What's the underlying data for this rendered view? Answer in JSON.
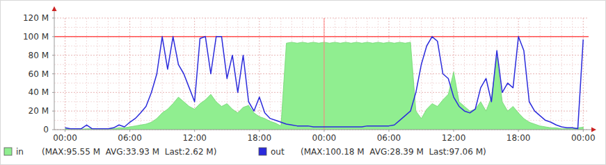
{
  "chart_data": {
    "type": "line",
    "x": [
      0,
      0.5,
      1,
      1.5,
      2,
      2.5,
      3,
      3.5,
      4,
      4.5,
      5,
      5.5,
      6,
      6.5,
      7,
      7.5,
      8,
      8.5,
      9,
      9.5,
      10,
      10.5,
      11,
      11.5,
      12,
      12.5,
      13,
      13.5,
      14,
      14.5,
      15,
      15.5,
      16,
      16.5,
      17,
      17.5,
      18,
      18.5,
      19,
      19.5,
      20,
      20.5,
      21,
      21.5,
      22,
      22.5,
      23,
      23.5,
      24,
      24.5,
      25,
      25.5,
      26,
      26.5,
      27,
      27.5,
      28,
      28.5,
      29,
      29.5,
      30,
      30.5,
      31,
      31.5,
      32,
      32.5,
      33,
      33.5,
      34,
      34.5,
      35,
      35.5,
      36,
      36.5,
      37,
      37.5,
      38,
      38.5,
      39,
      39.5,
      40,
      40.5,
      41,
      41.5,
      42,
      42.5,
      43,
      43.5,
      44,
      44.5,
      45,
      45.5,
      46,
      46.5,
      47,
      47.5,
      48
    ],
    "series": [
      {
        "name": "in",
        "type": "area",
        "color": "#90ee90",
        "stats": "(MAX:95.55 M  AVG:33.93 M  Last:2.62 M)",
        "values": [
          1,
          1,
          0.5,
          0.5,
          1,
          1,
          0.5,
          1,
          1,
          1,
          2,
          2,
          3,
          4,
          5,
          6,
          8,
          12,
          18,
          22,
          28,
          35,
          30,
          25,
          22,
          28,
          32,
          38,
          30,
          25,
          28,
          22,
          18,
          24,
          26,
          18,
          14,
          12,
          9,
          7,
          4,
          93,
          94,
          93,
          94,
          93,
          94,
          93,
          94,
          93,
          94,
          93,
          94,
          93,
          94,
          93,
          94,
          93,
          94,
          93,
          94,
          93,
          94,
          93,
          94,
          20,
          12,
          22,
          28,
          25,
          32,
          38,
          62,
          30,
          25,
          20,
          22,
          30,
          20,
          35,
          78,
          30,
          20,
          25,
          18,
          12,
          8,
          6,
          4,
          3,
          2,
          2,
          1,
          1,
          1,
          2,
          2.6
        ]
      },
      {
        "name": "out",
        "type": "line",
        "color": "#2b2bdc",
        "stats": "(MAX:100.18 M  AVG:28.39 M  Last:97.06 M)",
        "values": [
          2,
          1,
          1,
          1,
          5,
          1,
          1,
          1,
          1,
          2,
          5,
          3,
          8,
          12,
          18,
          25,
          40,
          60,
          100,
          65,
          100,
          70,
          60,
          45,
          30,
          98,
          100,
          60,
          100,
          100,
          55,
          80,
          40,
          80,
          30,
          20,
          35,
          18,
          12,
          10,
          8,
          6,
          5,
          4,
          4,
          4,
          3,
          3,
          3,
          3,
          3,
          3,
          3,
          3,
          3,
          3,
          4,
          4,
          4,
          4,
          4,
          5,
          10,
          15,
          20,
          40,
          70,
          90,
          100,
          95,
          60,
          55,
          35,
          25,
          20,
          18,
          22,
          45,
          55,
          30,
          85,
          40,
          50,
          45,
          100,
          85,
          30,
          20,
          15,
          10,
          8,
          5,
          3,
          2,
          2,
          1,
          97
        ]
      }
    ],
    "xlim": [
      -1,
      48.5
    ],
    "xticks": [
      {
        "value": 0,
        "label": "00:00"
      },
      {
        "value": 6,
        "label": "06:00"
      },
      {
        "value": 12,
        "label": "12:00"
      },
      {
        "value": 18,
        "label": "18:00"
      },
      {
        "value": 24,
        "label": "00:00"
      },
      {
        "value": 30,
        "label": "06:00"
      },
      {
        "value": 36,
        "label": "12:00"
      },
      {
        "value": 42,
        "label": "18:00"
      },
      {
        "value": 48,
        "label": "00:00"
      }
    ],
    "ylim": [
      0,
      120
    ],
    "yticks": [
      0,
      {
        "value": 20,
        "label": "20 M"
      },
      {
        "value": 40,
        "label": "40 M"
      },
      {
        "value": 60,
        "label": "60 M"
      },
      {
        "value": 80,
        "label": "80 M"
      },
      {
        "value": 100,
        "label": "100 M"
      },
      {
        "value": 120,
        "label": "120 M"
      }
    ],
    "limit": 100,
    "day_boundary": 24,
    "grid": true,
    "legend": "bottom"
  }
}
